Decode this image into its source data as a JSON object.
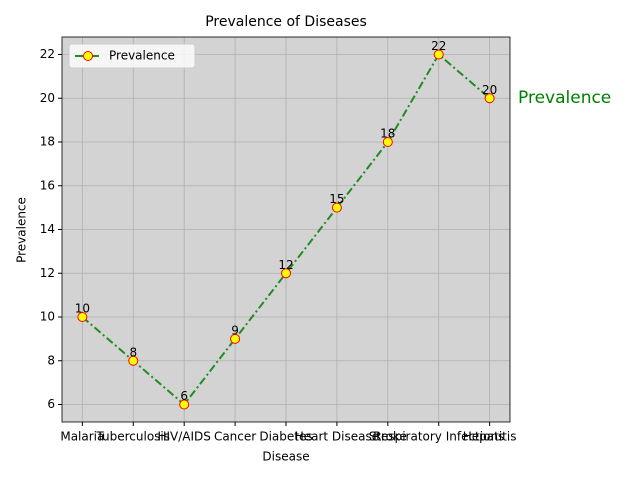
{
  "chart_data": {
    "type": "line",
    "title": "Prevalence of Diseases",
    "xlabel": "Disease",
    "ylabel": "Prevalence",
    "categories": [
      "Malaria",
      "Tuberculosis",
      "HIV/AIDS",
      "Cancer",
      "Diabetes",
      "Heart Disease",
      "Stroke",
      "Respiratory Infections",
      "Hepatitis"
    ],
    "series": [
      {
        "name": "Prevalence",
        "color": "#228b22",
        "marker_face": "#ffff00",
        "marker_edge": "#ff0000",
        "values": [
          10,
          8,
          6,
          9,
          12,
          15,
          18,
          22,
          20
        ]
      }
    ],
    "ylim": [
      5.2,
      22.8
    ],
    "yticks": [
      6,
      8,
      10,
      12,
      14,
      16,
      18,
      20,
      22
    ],
    "grid": true,
    "legend": "upper left",
    "background": "#d3d3d3",
    "annotation": "Prevalence"
  }
}
